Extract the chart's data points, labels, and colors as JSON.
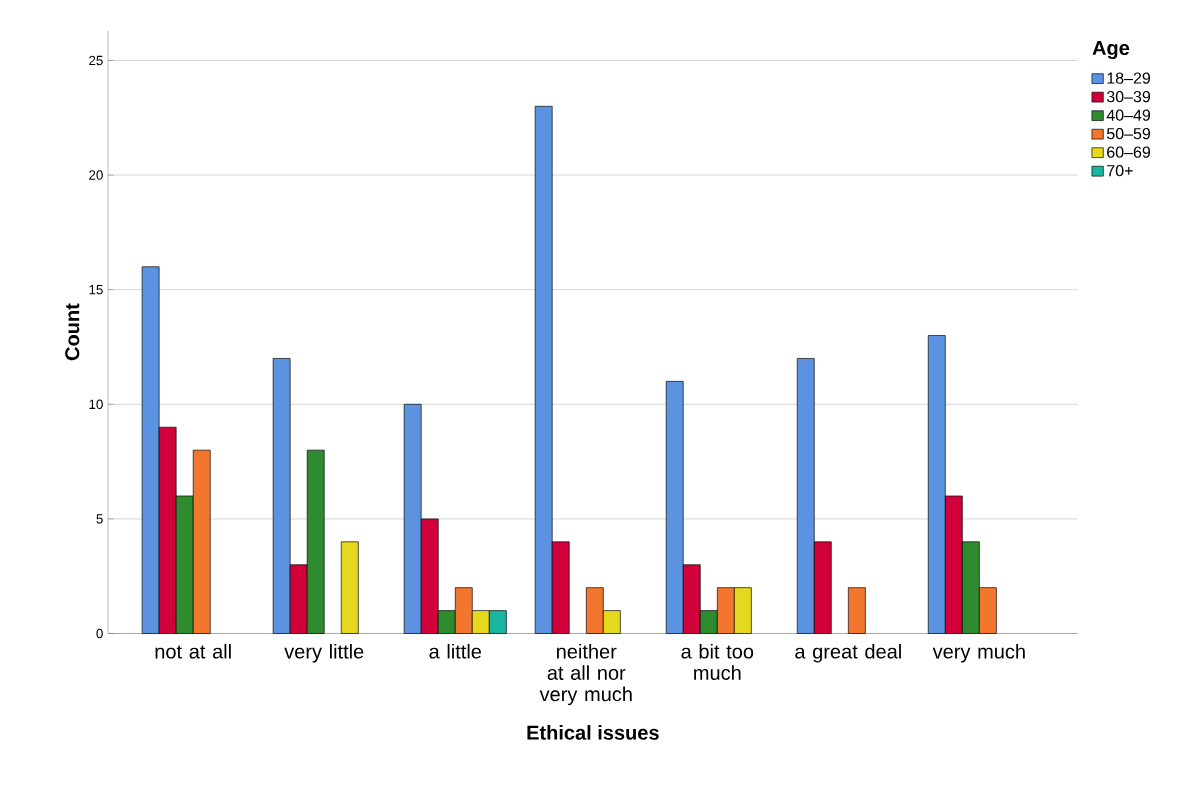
{
  "chart_data": {
    "type": "bar",
    "xlabel": "Ethical issues",
    "ylabel": "Count",
    "legend_title": "Age",
    "legend": "top right",
    "grid": "y",
    "categories": [
      "not at all",
      "very little",
      "a little",
      "neither at all nor very much",
      "a bit too much",
      "a great deal",
      "very much"
    ],
    "ylim": [
      0,
      26.3
    ],
    "yticks": [
      0,
      5,
      10,
      15,
      20,
      25
    ],
    "series": [
      {
        "name": "18–29",
        "color": "#5b93e0",
        "values": [
          16,
          12,
          10,
          23,
          11,
          12,
          13
        ]
      },
      {
        "name": "30–39",
        "color": "#d2003a",
        "values": [
          9,
          3,
          5,
          4,
          3,
          4,
          6
        ]
      },
      {
        "name": "40–49",
        "color": "#2e8b2e",
        "values": [
          6,
          8,
          1,
          null,
          1,
          null,
          4
        ]
      },
      {
        "name": "50–59",
        "color": "#f2762e",
        "values": [
          8,
          null,
          2,
          2,
          2,
          2,
          2
        ]
      },
      {
        "name": "60–69",
        "color": "#e6d81e",
        "values": [
          null,
          4,
          1,
          1,
          2,
          null,
          null
        ]
      },
      {
        "name": "70+",
        "color": "#1ab5a0",
        "values": [
          null,
          null,
          1,
          null,
          null,
          null,
          null
        ]
      }
    ]
  }
}
